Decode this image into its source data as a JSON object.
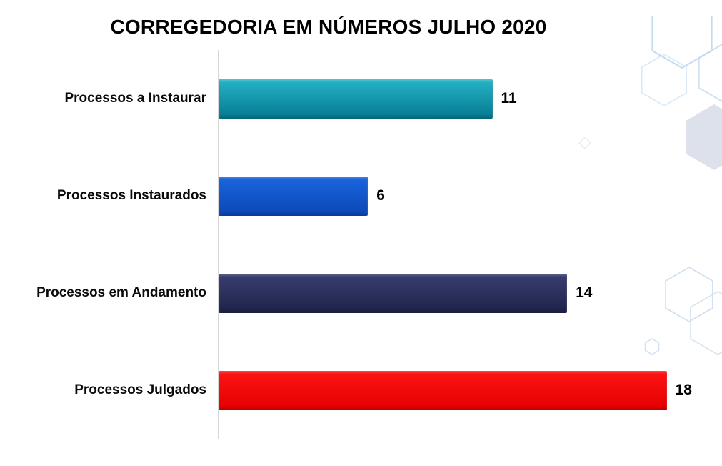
{
  "chart_data": {
    "type": "bar",
    "orientation": "horizontal",
    "title": "CORREGEDORIA EM NÚMEROS JULHO 2020",
    "categories": [
      "Processos a Instaurar",
      "Processos Instaurados",
      "Processos em Andamento",
      "Processos Julgados"
    ],
    "values": [
      11,
      6,
      14,
      18
    ],
    "colors": [
      [
        "#25b4c6",
        "#057991"
      ],
      [
        "#1a66e0",
        "#0b46b4"
      ],
      [
        "#3a3f72",
        "#1e2247"
      ],
      [
        "#ff1414",
        "#e30000"
      ],
      [
        "",
        ""
      ]
    ],
    "xlim": [
      0,
      18.5
    ],
    "grid": false,
    "legend": false,
    "value_labels": true,
    "xlabel": "",
    "ylabel": ""
  },
  "decoration": {
    "name": "hexagon-pattern",
    "stroke_color": "#c5dbee",
    "fill_color": "#dbdfeb"
  }
}
